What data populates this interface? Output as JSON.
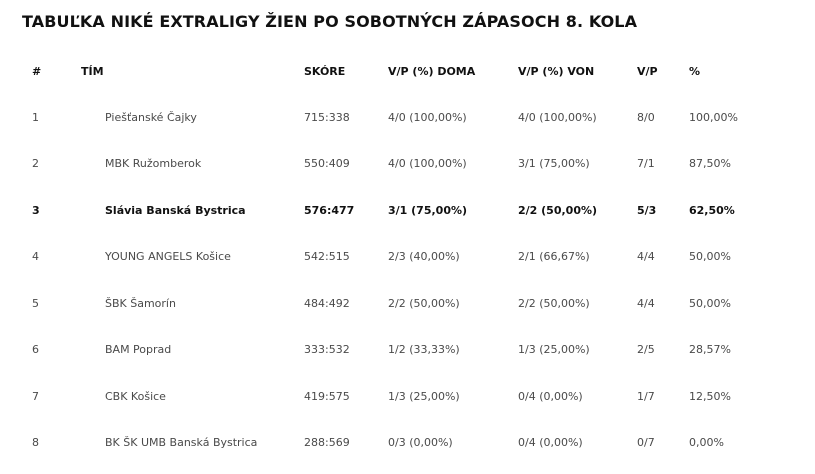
{
  "title": "TABUĽKA NIKÉ EXTRALIGY ŽIEN PO SOBOTNÝCH ZÁPASOCH 8. KOLA",
  "columns": [
    "#",
    "TÍM",
    "SKÓRE",
    "V/P (%) DOMA",
    "V/P (%) VON",
    "V/P",
    "%"
  ],
  "rows": [
    {
      "rank": "1",
      "team": "Piešťanské Čajky",
      "score": "715:338",
      "home": "4/0 (100,00%)",
      "away": "4/0 (100,00%)",
      "wl": "8/0",
      "pct": "100,00%",
      "highlight": false
    },
    {
      "rank": "2",
      "team": "MBK Ružomberok",
      "score": "550:409",
      "home": "4/0 (100,00%)",
      "away": "3/1 (75,00%)",
      "wl": "7/1",
      "pct": "87,50%",
      "highlight": false
    },
    {
      "rank": "3",
      "team": "Slávia Banská Bystrica",
      "score": "576:477",
      "home": "3/1 (75,00%)",
      "away": "2/2 (50,00%)",
      "wl": "5/3",
      "pct": "62,50%",
      "highlight": true
    },
    {
      "rank": "4",
      "team": "YOUNG ANGELS Košice",
      "score": "542:515",
      "home": "2/3 (40,00%)",
      "away": "2/1 (66,67%)",
      "wl": "4/4",
      "pct": "50,00%",
      "highlight": false
    },
    {
      "rank": "5",
      "team": "ŠBK Šamorín",
      "score": "484:492",
      "home": "2/2 (50,00%)",
      "away": "2/2 (50,00%)",
      "wl": "4/4",
      "pct": "50,00%",
      "highlight": false
    },
    {
      "rank": "6",
      "team": "BAM Poprad",
      "score": "333:532",
      "home": "1/2 (33,33%)",
      "away": "1/3 (25,00%)",
      "wl": "2/5",
      "pct": "28,57%",
      "highlight": false
    },
    {
      "rank": "7",
      "team": "CBK Košice",
      "score": "419:575",
      "home": "1/3 (25,00%)",
      "away": "0/4 (0,00%)",
      "wl": "1/7",
      "pct": "12,50%",
      "highlight": false
    },
    {
      "rank": "8",
      "team": "BK ŠK UMB Banská Bystrica",
      "score": "288:569",
      "home": "0/3 (0,00%)",
      "away": "0/4 (0,00%)",
      "wl": "0/7",
      "pct": "0,00%",
      "highlight": false
    }
  ]
}
